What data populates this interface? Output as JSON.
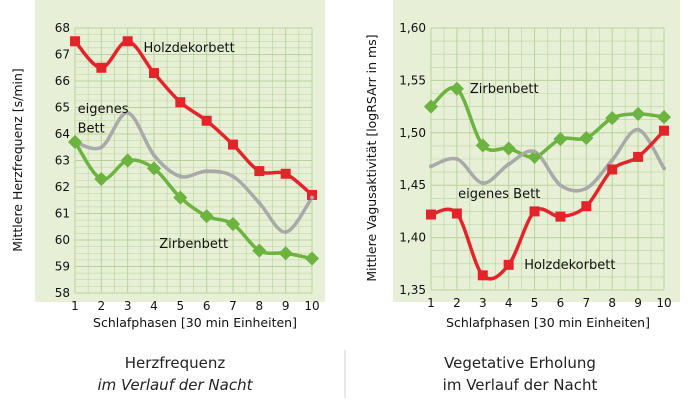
{
  "colors": {
    "panel_bg": "#e7f0d6",
    "grid": "#b8d39a",
    "holz": "#e3252b",
    "eigen": "#a9a9a9",
    "zirben": "#6db33f"
  },
  "chart_data": [
    {
      "type": "line",
      "x": [
        1,
        2,
        3,
        4,
        5,
        6,
        7,
        8,
        9,
        10
      ],
      "xticks": [
        "1",
        "2",
        "3",
        "4",
        "5",
        "6",
        "7",
        "8",
        "9",
        "10"
      ],
      "xlim": [
        1,
        10
      ],
      "ylim": [
        58,
        68
      ],
      "yticks": [
        "58",
        "59",
        "60",
        "61",
        "62",
        "63",
        "64",
        "65",
        "66",
        "67",
        "68"
      ],
      "yticks_values": [
        58,
        59,
        60,
        61,
        62,
        63,
        64,
        65,
        66,
        67,
        68
      ],
      "xlabel": "Schlafphasen [30 min Einheiten]",
      "ylabel": "Mittlere Herzfrequenz [s/min]",
      "caption": [
        "Herzfrequenz",
        "im Verlauf der Nacht"
      ],
      "grid": true,
      "series": [
        {
          "name": "Holzdekorbett",
          "color_key": "holz",
          "values": [
            67.5,
            66.5,
            67.5,
            66.3,
            65.2,
            64.5,
            63.6,
            62.6,
            62.5,
            61.7
          ]
        },
        {
          "name": "eigenes Bett",
          "color_key": "eigen",
          "values": [
            63.7,
            63.5,
            64.8,
            63.2,
            62.4,
            62.6,
            62.4,
            61.4,
            60.3,
            61.6
          ]
        },
        {
          "name": "Zirbenbett",
          "color_key": "zirben",
          "values": [
            63.7,
            62.3,
            63.0,
            62.7,
            61.6,
            60.9,
            60.6,
            59.6,
            59.5,
            59.3
          ]
        }
      ],
      "series_labels": [
        {
          "text": "Holzdekorbett",
          "at": [
            3.6,
            67.1
          ]
        },
        {
          "text": "eigenes",
          "at": [
            1.1,
            64.8
          ]
        },
        {
          "text": "Bett",
          "at": [
            1.1,
            64.05
          ]
        },
        {
          "text": "Zirbenbett",
          "at": [
            4.2,
            59.7
          ]
        }
      ]
    },
    {
      "type": "line",
      "x": [
        1,
        2,
        3,
        4,
        5,
        6,
        7,
        8,
        9,
        10
      ],
      "xticks": [
        "1",
        "2",
        "3",
        "4",
        "5",
        "6",
        "7",
        "8",
        "9",
        "10"
      ],
      "xlim": [
        1,
        10
      ],
      "ylim": [
        1.35,
        1.6
      ],
      "yticks": [
        "1,35",
        "1,40",
        "1,45",
        "1,50",
        "1,55",
        "1,60"
      ],
      "yticks_values": [
        1.35,
        1.4,
        1.45,
        1.5,
        1.55,
        1.6
      ],
      "xlabel": "Schlafphasen [30 min Einheiten]",
      "ylabel": "Mittlere Vagusaktivität [logRSArr in ms]",
      "caption": [
        "Vegetative Erholung",
        "im Verlauf der Nacht"
      ],
      "grid": true,
      "series": [
        {
          "name": "Zirbenbett",
          "color_key": "zirben",
          "values": [
            1.525,
            1.542,
            1.488,
            1.485,
            1.477,
            1.494,
            1.495,
            1.514,
            1.518,
            1.515
          ]
        },
        {
          "name": "eigenes Bett",
          "color_key": "eigen",
          "values": [
            1.468,
            1.475,
            1.452,
            1.47,
            1.482,
            1.45,
            1.447,
            1.474,
            1.503,
            1.466
          ]
        },
        {
          "name": "Holzdekorbett",
          "color_key": "holz",
          "values": [
            1.422,
            1.423,
            1.364,
            1.374,
            1.425,
            1.42,
            1.43,
            1.465,
            1.477,
            1.502
          ]
        }
      ],
      "series_labels": [
        {
          "text": "Zirbenbett",
          "at": [
            2.5,
            1.538
          ]
        },
        {
          "text": "eigenes Bett",
          "at": [
            2.05,
            1.438
          ]
        },
        {
          "text": "Holzdekorbett",
          "at": [
            4.6,
            1.37
          ]
        }
      ]
    }
  ]
}
